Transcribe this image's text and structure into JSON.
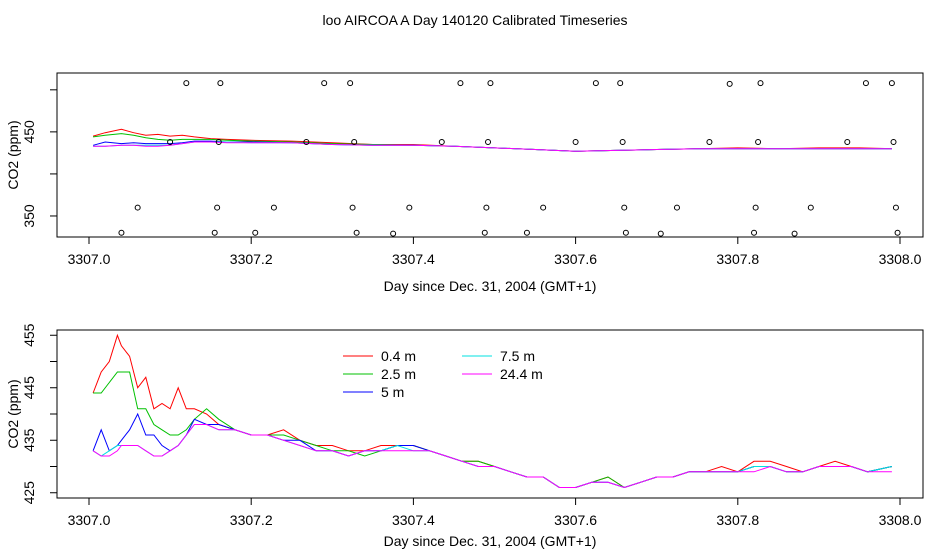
{
  "title": "loo AIRCOA A  Day 140120  Calibrated Timeseries",
  "colors": {
    "s0": "#ff0000",
    "s1": "#00c000",
    "s2": "#0000ff",
    "s3": "#00e0e0",
    "s4": "#ff00ff",
    "markers": "#000000"
  },
  "chart_data": [
    {
      "type": "line",
      "xlabel": "Day since Dec. 31, 2004 (GMT+1)",
      "ylabel": "CO2 (ppm)",
      "xlim": [
        3307.0,
        3308.0
      ],
      "ylim": [
        325,
        520
      ],
      "xticks": [
        "3307.0",
        "3307.2",
        "3307.4",
        "3307.6",
        "3307.8",
        "3308.0"
      ],
      "xtick_values": [
        3307.0,
        3307.2,
        3307.4,
        3307.6,
        3307.8,
        3308.0
      ],
      "yticks": [
        "350",
        "450"
      ],
      "ytick_values": [
        350,
        450
      ],
      "series": [
        {
          "x": [
            3307.005,
            3307.02,
            3307.04,
            3307.055,
            3307.07,
            3307.085,
            3307.1,
            3307.115,
            3307.13,
            3307.15,
            3307.17,
            3307.2,
            3307.25,
            3307.3,
            3307.35,
            3307.4,
            3307.45,
            3307.5,
            3307.55,
            3307.6,
            3307.65,
            3307.7,
            3307.75,
            3307.8,
            3307.85,
            3307.9,
            3307.95,
            3307.99
          ],
          "y": [
            445,
            449,
            453,
            449,
            446,
            447,
            445,
            446,
            444,
            442,
            441,
            440,
            439,
            437,
            435,
            435,
            433,
            431,
            429,
            427,
            428,
            429,
            430,
            431,
            430,
            431,
            431,
            430
          ]
        },
        {
          "x": [
            3307.005,
            3307.02,
            3307.04,
            3307.055,
            3307.07,
            3307.085,
            3307.1,
            3307.115,
            3307.13,
            3307.15,
            3307.17,
            3307.2,
            3307.25,
            3307.3,
            3307.35,
            3307.4,
            3307.45,
            3307.5,
            3307.55,
            3307.6,
            3307.65,
            3307.7,
            3307.75,
            3307.8,
            3307.85,
            3307.9,
            3307.95,
            3307.99
          ],
          "y": [
            444,
            446,
            448,
            446,
            443,
            441,
            440,
            441,
            441,
            441,
            440,
            439,
            438,
            436,
            435,
            434,
            433,
            431,
            429,
            427,
            428,
            429,
            430,
            430,
            430,
            430,
            430,
            430
          ]
        },
        {
          "x": [
            3307.005,
            3307.02,
            3307.04,
            3307.055,
            3307.07,
            3307.085,
            3307.1,
            3307.115,
            3307.13,
            3307.15,
            3307.17,
            3307.2,
            3307.25,
            3307.3,
            3307.35,
            3307.4,
            3307.45,
            3307.5,
            3307.55,
            3307.6,
            3307.65,
            3307.7,
            3307.75,
            3307.8,
            3307.85,
            3307.9,
            3307.95,
            3307.99
          ],
          "y": [
            434,
            438,
            436,
            437,
            436,
            436,
            436,
            437,
            439,
            439,
            438,
            438,
            437,
            435,
            434,
            434,
            433,
            431,
            429,
            427,
            428,
            429,
            430,
            430,
            430,
            430,
            430,
            430
          ]
        },
        {
          "x": [
            3307.005,
            3307.02,
            3307.04,
            3307.055,
            3307.07,
            3307.085,
            3307.1,
            3307.115,
            3307.13,
            3307.15,
            3307.17,
            3307.2,
            3307.25,
            3307.3,
            3307.35,
            3307.4,
            3307.45,
            3307.5,
            3307.55,
            3307.6,
            3307.65,
            3307.7,
            3307.75,
            3307.8,
            3307.85,
            3307.9,
            3307.95,
            3307.99
          ],
          "y": [
            433,
            433,
            434,
            434,
            434,
            434,
            434,
            436,
            438,
            438,
            438,
            437,
            437,
            435,
            434,
            434,
            433,
            431,
            429,
            427,
            428,
            429,
            430,
            430,
            430,
            430,
            430,
            430
          ]
        },
        {
          "x": [
            3307.005,
            3307.02,
            3307.04,
            3307.055,
            3307.07,
            3307.085,
            3307.1,
            3307.115,
            3307.13,
            3307.15,
            3307.17,
            3307.2,
            3307.25,
            3307.3,
            3307.35,
            3307.4,
            3307.45,
            3307.5,
            3307.55,
            3307.6,
            3307.65,
            3307.7,
            3307.75,
            3307.8,
            3307.85,
            3307.9,
            3307.95,
            3307.99
          ],
          "y": [
            433,
            433,
            434,
            434,
            433,
            433,
            434,
            436,
            438,
            438,
            437,
            437,
            437,
            435,
            434,
            434,
            433,
            431,
            429,
            427,
            428,
            429,
            430,
            430,
            430,
            430,
            430,
            430
          ]
        }
      ],
      "markers": [
        {
          "x": 3307.04,
          "y": 330
        },
        {
          "x": 3307.06,
          "y": 360
        },
        {
          "x": 3307.1,
          "y": 438
        },
        {
          "x": 3307.12,
          "y": 508
        },
        {
          "x": 3307.155,
          "y": 330
        },
        {
          "x": 3307.158,
          "y": 360
        },
        {
          "x": 3307.16,
          "y": 438
        },
        {
          "x": 3307.162,
          "y": 508
        },
        {
          "x": 3307.205,
          "y": 330
        },
        {
          "x": 3307.228,
          "y": 360
        },
        {
          "x": 3307.268,
          "y": 438
        },
        {
          "x": 3307.29,
          "y": 508
        },
        {
          "x": 3307.322,
          "y": 508
        },
        {
          "x": 3307.325,
          "y": 360
        },
        {
          "x": 3307.327,
          "y": 438
        },
        {
          "x": 3307.33,
          "y": 330
        },
        {
          "x": 3307.375,
          "y": 329
        },
        {
          "x": 3307.395,
          "y": 360
        },
        {
          "x": 3307.435,
          "y": 438
        },
        {
          "x": 3307.458,
          "y": 508
        },
        {
          "x": 3307.488,
          "y": 330
        },
        {
          "x": 3307.49,
          "y": 360
        },
        {
          "x": 3307.492,
          "y": 438
        },
        {
          "x": 3307.495,
          "y": 508
        },
        {
          "x": 3307.54,
          "y": 330
        },
        {
          "x": 3307.56,
          "y": 360
        },
        {
          "x": 3307.6,
          "y": 438
        },
        {
          "x": 3307.625,
          "y": 508
        },
        {
          "x": 3307.655,
          "y": 508
        },
        {
          "x": 3307.658,
          "y": 438
        },
        {
          "x": 3307.66,
          "y": 360
        },
        {
          "x": 3307.662,
          "y": 330
        },
        {
          "x": 3307.705,
          "y": 329
        },
        {
          "x": 3307.725,
          "y": 360
        },
        {
          "x": 3307.765,
          "y": 438
        },
        {
          "x": 3307.79,
          "y": 507
        },
        {
          "x": 3307.82,
          "y": 330
        },
        {
          "x": 3307.822,
          "y": 360
        },
        {
          "x": 3307.825,
          "y": 438
        },
        {
          "x": 3307.828,
          "y": 508
        },
        {
          "x": 3307.87,
          "y": 329
        },
        {
          "x": 3307.89,
          "y": 360
        },
        {
          "x": 3307.935,
          "y": 438
        },
        {
          "x": 3307.958,
          "y": 508
        },
        {
          "x": 3307.99,
          "y": 508
        },
        {
          "x": 3307.992,
          "y": 438
        },
        {
          "x": 3307.995,
          "y": 360
        },
        {
          "x": 3307.997,
          "y": 330
        }
      ]
    },
    {
      "type": "line",
      "xlabel": "Day since Dec. 31, 2004 (GMT+1)",
      "ylabel": "CO2 (ppm)",
      "xlim": [
        3307.0,
        3308.0
      ],
      "ylim": [
        424,
        456
      ],
      "xticks": [
        "3307.0",
        "3307.2",
        "3307.4",
        "3307.6",
        "3307.8",
        "3308.0"
      ],
      "xtick_values": [
        3307.0,
        3307.2,
        3307.4,
        3307.6,
        3307.8,
        3308.0
      ],
      "yticks": [
        "425",
        "435",
        "445",
        "455"
      ],
      "ytick_values": [
        425,
        435,
        445,
        455
      ],
      "legend": {
        "placement": "top-center",
        "entries": [
          "0.4 m",
          "2.5 m",
          "5 m",
          "7.5 m",
          "24.4 m"
        ]
      },
      "x": [
        3307.005,
        3307.015,
        3307.025,
        3307.035,
        3307.04,
        3307.05,
        3307.06,
        3307.07,
        3307.08,
        3307.09,
        3307.1,
        3307.11,
        3307.12,
        3307.13,
        3307.145,
        3307.16,
        3307.18,
        3307.2,
        3307.22,
        3307.24,
        3307.26,
        3307.28,
        3307.3,
        3307.32,
        3307.34,
        3307.36,
        3307.38,
        3307.4,
        3307.42,
        3307.44,
        3307.46,
        3307.48,
        3307.5,
        3307.52,
        3307.54,
        3307.56,
        3307.58,
        3307.6,
        3307.62,
        3307.64,
        3307.66,
        3307.68,
        3307.7,
        3307.72,
        3307.74,
        3307.76,
        3307.78,
        3307.8,
        3307.82,
        3307.84,
        3307.86,
        3307.88,
        3307.9,
        3307.92,
        3307.94,
        3307.96,
        3307.99
      ],
      "series": [
        {
          "name": "0.4 m",
          "values": [
            444,
            448,
            450,
            455,
            453,
            451,
            445,
            447,
            441,
            442,
            441,
            445,
            441,
            441,
            440,
            438,
            437,
            436,
            436,
            437,
            435,
            434,
            434,
            433,
            433,
            434,
            434,
            434,
            433,
            432,
            431,
            431,
            430,
            429,
            428,
            428,
            426,
            426,
            427,
            428,
            426,
            427,
            428,
            428,
            429,
            429,
            430,
            429,
            431,
            431,
            430,
            429,
            430,
            431,
            430,
            429,
            430
          ]
        },
        {
          "name": "2.5 m",
          "values": [
            444,
            444,
            446,
            448,
            448,
            448,
            441,
            441,
            438,
            437,
            436,
            436,
            437,
            439,
            441,
            439,
            437,
            436,
            436,
            436,
            435,
            434,
            433,
            433,
            432,
            433,
            434,
            434,
            433,
            432,
            431,
            431,
            430,
            429,
            428,
            428,
            426,
            426,
            427,
            428,
            426,
            427,
            428,
            428,
            429,
            429,
            429,
            429,
            430,
            430,
            429,
            429,
            430,
            430,
            430,
            429,
            430
          ]
        },
        {
          "name": "5 m",
          "values": [
            433,
            437,
            433,
            434,
            435,
            437,
            440,
            436,
            436,
            434,
            433,
            434,
            436,
            439,
            438,
            438,
            437,
            436,
            436,
            435,
            435,
            433,
            433,
            432,
            433,
            433,
            434,
            434,
            433,
            432,
            431,
            430,
            430,
            429,
            428,
            428,
            426,
            426,
            427,
            427,
            426,
            427,
            428,
            428,
            429,
            429,
            429,
            429,
            430,
            430,
            429,
            429,
            430,
            430,
            430,
            429,
            430
          ]
        },
        {
          "name": "7.5 m",
          "values": [
            433,
            432,
            433,
            434,
            434,
            434,
            434,
            433,
            432,
            432,
            433,
            434,
            436,
            438,
            438,
            437,
            437,
            436,
            436,
            435,
            434,
            433,
            433,
            432,
            433,
            433,
            434,
            433,
            433,
            432,
            431,
            430,
            430,
            429,
            428,
            428,
            426,
            426,
            427,
            427,
            426,
            427,
            428,
            428,
            429,
            429,
            429,
            429,
            430,
            430,
            429,
            429,
            430,
            430,
            430,
            429,
            430
          ]
        },
        {
          "name": "24.4 m",
          "values": [
            433,
            432,
            432,
            433,
            434,
            434,
            434,
            433,
            432,
            432,
            433,
            434,
            436,
            438,
            438,
            437,
            437,
            436,
            436,
            435,
            434,
            433,
            433,
            432,
            433,
            433,
            433,
            433,
            433,
            432,
            431,
            430,
            430,
            429,
            428,
            428,
            426,
            426,
            427,
            427,
            426,
            427,
            428,
            428,
            429,
            429,
            429,
            429,
            429,
            430,
            429,
            429,
            430,
            430,
            430,
            429,
            429
          ]
        }
      ]
    }
  ]
}
